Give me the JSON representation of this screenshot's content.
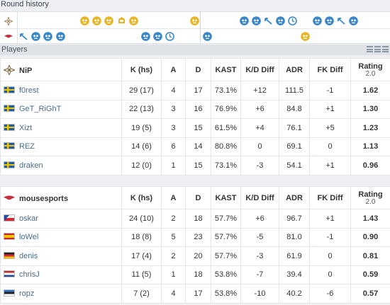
{
  "round_history": {
    "title": "Round history",
    "teams": [
      "NiP",
      "mousesports"
    ],
    "rows": [
      [
        "",
        "",
        "",
        "",
        "",
        "",
        "",
        "",
        "",
        "",
        "",
        "",
        "",
        "",
        "",
        "",
        "",
        "",
        "",
        "",
        "",
        "",
        "",
        "",
        "",
        "",
        "",
        "",
        "",
        ""
      ],
      [
        "",
        "",
        "",
        "",
        "",
        "",
        "",
        "",
        "",
        "",
        "",
        "",
        "",
        "",
        "",
        "",
        "",
        "",
        "",
        "",
        "",
        "",
        "",
        "",
        "",
        "",
        "",
        "",
        "",
        ""
      ]
    ],
    "nip_rounds": [
      {
        "slot": 6,
        "type": "t-skull"
      },
      {
        "slot": 7,
        "type": "t-skull"
      },
      {
        "slot": 8,
        "type": "t-skull"
      },
      {
        "slot": 9,
        "type": "bomb"
      },
      {
        "slot": 10,
        "type": "t-skull"
      },
      {
        "slot": 15,
        "type": "t-skull"
      },
      {
        "slot": 19,
        "type": "ct-skull"
      },
      {
        "slot": 20,
        "type": "ct-skull"
      },
      {
        "slot": 21,
        "type": "ct-defuse"
      },
      {
        "slot": 22,
        "type": "ct-skull"
      },
      {
        "slot": 23,
        "type": "ct-time"
      },
      {
        "slot": 25,
        "type": "ct-skull"
      },
      {
        "slot": 26,
        "type": "ct-skull"
      },
      {
        "slot": 27,
        "type": "ct-defuse"
      },
      {
        "slot": 28,
        "type": "ct-skull"
      }
    ],
    "mouz_rounds": [
      {
        "slot": 1,
        "type": "ct-defuse"
      },
      {
        "slot": 2,
        "type": "ct-skull"
      },
      {
        "slot": 3,
        "type": "ct-skull"
      },
      {
        "slot": 4,
        "type": "ct-skull"
      },
      {
        "slot": 11,
        "type": "ct-skull"
      },
      {
        "slot": 12,
        "type": "ct-skull"
      },
      {
        "slot": 13,
        "type": "ct-time"
      },
      {
        "slot": 16,
        "type": "ct-skull"
      },
      {
        "slot": 24,
        "type": "t-skull"
      }
    ]
  },
  "players": {
    "title": "Players",
    "headers": {
      "kills": "K (hs)",
      "assists": "A",
      "deaths": "D",
      "kast": "KAST",
      "kd_diff": "K/D Diff",
      "adr": "ADR",
      "fk_diff": "FK Diff",
      "rating": "Rating",
      "rating_version": "2.0"
    },
    "team1": {
      "name": "NiP",
      "players": [
        {
          "name": "f0rest",
          "flag": "se",
          "k": "29 (17)",
          "a": "4",
          "d": "17",
          "kast": "73.1%",
          "kd": "+12",
          "adr": "111.5",
          "fk": "-1",
          "rating": "1.62"
        },
        {
          "name": "GeT_RiGhT",
          "flag": "se",
          "k": "22 (13)",
          "a": "3",
          "d": "16",
          "kast": "76.9%",
          "kd": "+6",
          "adr": "84.8",
          "fk": "+1",
          "rating": "1.30"
        },
        {
          "name": "Xizt",
          "flag": "se",
          "k": "19 (5)",
          "a": "3",
          "d": "15",
          "kast": "61.5%",
          "kd": "+4",
          "adr": "76.1",
          "fk": "+5",
          "rating": "1.23"
        },
        {
          "name": "REZ",
          "flag": "se",
          "k": "14 (6)",
          "a": "6",
          "d": "14",
          "kast": "80.8%",
          "kd": "0",
          "adr": "69.1",
          "fk": "0",
          "rating": "1.13"
        },
        {
          "name": "draken",
          "flag": "se",
          "k": "12 (0)",
          "a": "1",
          "d": "15",
          "kast": "73.1%",
          "kd": "-3",
          "adr": "54.1",
          "fk": "+1",
          "rating": "0.96"
        }
      ]
    },
    "team2": {
      "name": "mousesports",
      "players": [
        {
          "name": "oskar",
          "flag": "cz",
          "k": "24 (10)",
          "a": "2",
          "d": "18",
          "kast": "57.7%",
          "kd": "+6",
          "adr": "96.7",
          "fk": "+1",
          "rating": "1.43"
        },
        {
          "name": "loWel",
          "flag": "es",
          "k": "18 (8)",
          "a": "5",
          "d": "23",
          "kast": "57.7%",
          "kd": "-5",
          "adr": "81.0",
          "fk": "-1",
          "rating": "0.90"
        },
        {
          "name": "denis",
          "flag": "de",
          "k": "17 (4)",
          "a": "2",
          "d": "20",
          "kast": "57.7%",
          "kd": "-3",
          "adr": "61.9",
          "fk": "0",
          "rating": "0.81"
        },
        {
          "name": "chrisJ",
          "flag": "nl",
          "k": "11 (5)",
          "a": "1",
          "d": "18",
          "kast": "53.8%",
          "kd": "-7",
          "adr": "39.4",
          "fk": "0",
          "rating": "0.59"
        },
        {
          "name": "ropz",
          "flag": "ee",
          "k": "7 (2)",
          "a": "4",
          "d": "17",
          "kast": "53.8%",
          "kd": "-10",
          "adr": "40.2",
          "fk": "-6",
          "rating": "0.57"
        }
      ]
    }
  },
  "colors": {
    "t_side": "#e8b325",
    "ct_side": "#3a86c8",
    "positive": "#2b8a2b",
    "negative": "#d23c3c"
  }
}
